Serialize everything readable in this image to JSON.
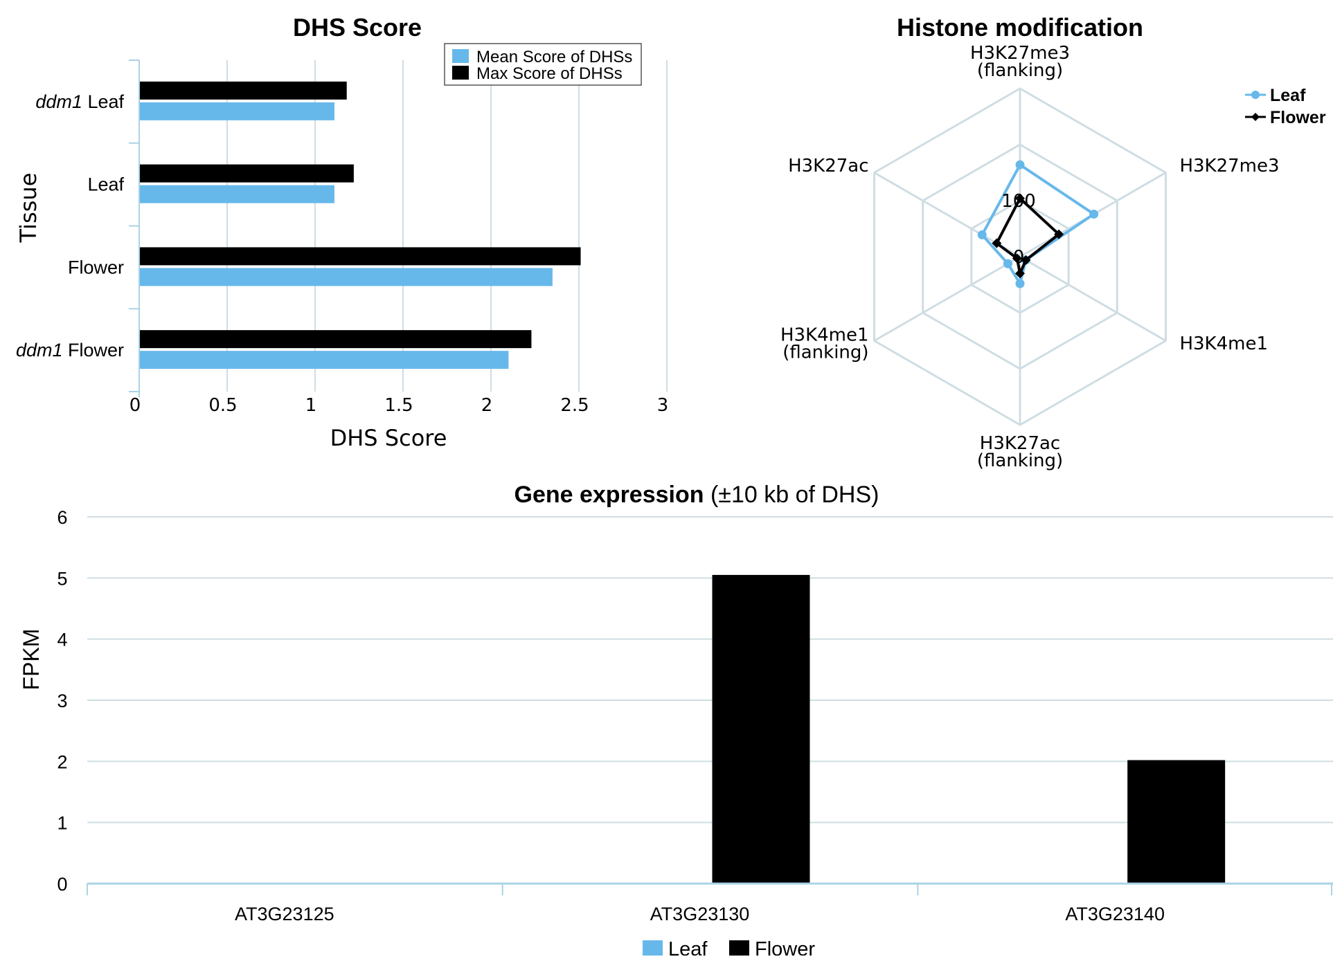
{
  "colors": {
    "leaf": "#67b8ea",
    "flower": "#000000",
    "grid": "#cfdde3",
    "axis": "#a9d3e6"
  },
  "chart_data": [
    {
      "type": "bar",
      "orientation": "horizontal",
      "title": "DHS Score",
      "xlabel": "DHS Score",
      "ylabel": "Tissue",
      "xlim": [
        0,
        3
      ],
      "xticks": [
        "0",
        "0.5",
        "1",
        "1.5",
        "2",
        "2.5",
        "3"
      ],
      "categories": [
        {
          "italic": "ddm1",
          "rest": " Leaf"
        },
        {
          "italic": "",
          "rest": "Leaf"
        },
        {
          "italic": "",
          "rest": "Flower"
        },
        {
          "italic": "ddm1",
          "rest": " Flower"
        }
      ],
      "series": [
        {
          "name": "Max Score of DHSs",
          "color": "#000000",
          "values": [
            1.18,
            1.22,
            2.51,
            2.23
          ]
        },
        {
          "name": "Mean Score of DHSs",
          "color": "#67b8ea",
          "values": [
            1.11,
            1.11,
            2.35,
            2.1
          ]
        }
      ],
      "legend_position": "top-right"
    },
    {
      "type": "radar",
      "title": "Histone modification",
      "axes": [
        {
          "lines": [
            "H3K27me3",
            "(flanking)"
          ]
        },
        {
          "lines": [
            "H3K27me3"
          ]
        },
        {
          "lines": [
            "H3K4me1"
          ]
        },
        {
          "lines": [
            "H3K27ac",
            "(flanking)"
          ]
        },
        {
          "lines": [
            "H3K4me1",
            "(flanking)"
          ]
        },
        {
          "lines": [
            "H3K27ac"
          ]
        }
      ],
      "rings": 3,
      "ring_labels": [
        {
          "ring": 0,
          "text": "0"
        },
        {
          "ring": 1,
          "text": "100"
        }
      ],
      "series": [
        {
          "name": "Leaf",
          "color": "#67b8ea",
          "marker": "circle",
          "values": [
            164,
            152,
            12,
            48,
            25,
            78
          ]
        },
        {
          "name": "Flower",
          "color": "#000000",
          "marker": "diamond",
          "values": [
            104,
            80,
            12,
            30,
            6,
            48
          ]
        }
      ],
      "legend_position": "top-right"
    },
    {
      "type": "bar",
      "title": "Gene expression",
      "subtitle": " (±10 kb of DHS)",
      "ylabel": "FPKM",
      "ylim": [
        0,
        6
      ],
      "yticks": [
        "0",
        "1",
        "2",
        "3",
        "4",
        "5",
        "6"
      ],
      "categories": [
        "AT3G23125",
        "AT3G23130",
        "AT3G23140"
      ],
      "series": [
        {
          "name": "Leaf",
          "color": "#67b8ea",
          "values": [
            0,
            0,
            0
          ]
        },
        {
          "name": "Flower",
          "color": "#000000",
          "values": [
            0,
            5.05,
            2.02
          ]
        }
      ],
      "legend_position": "bottom-center"
    }
  ]
}
